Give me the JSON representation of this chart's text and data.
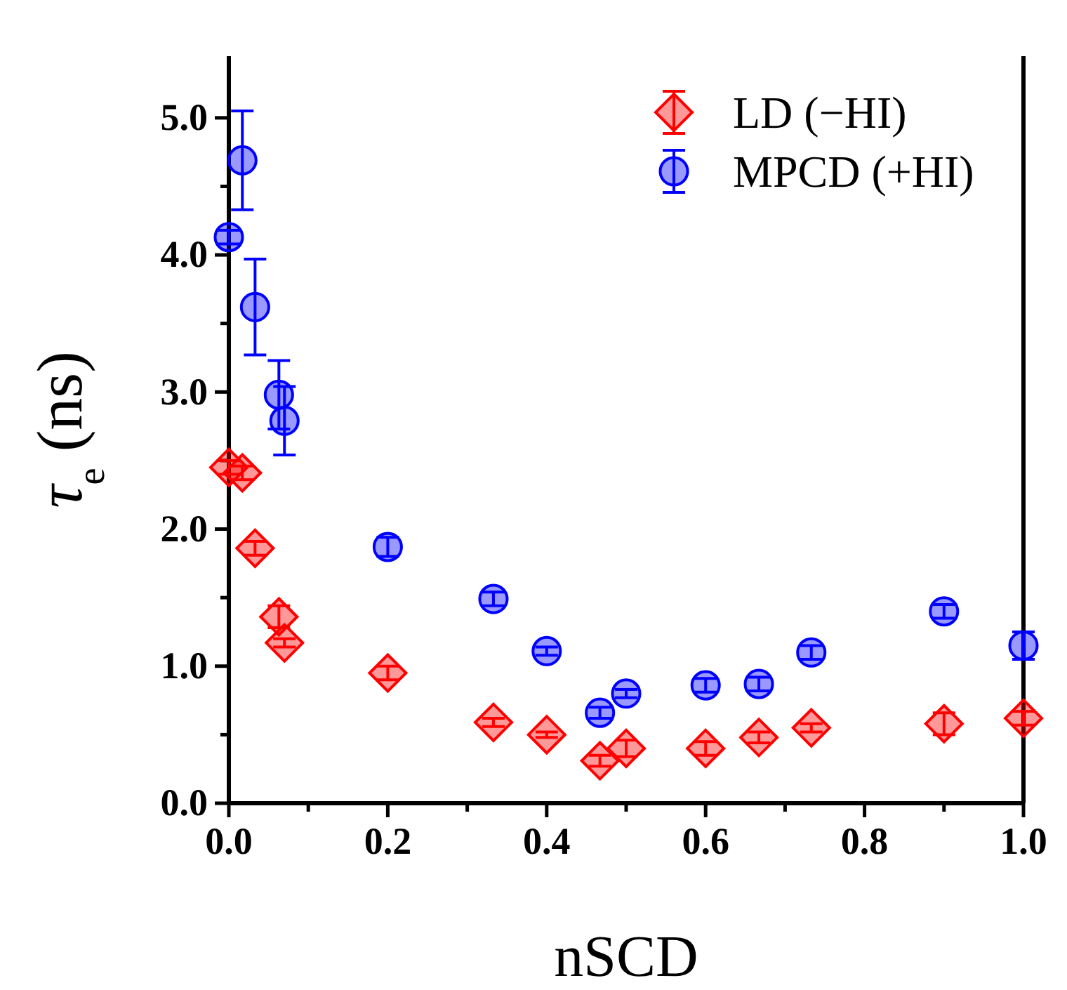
{
  "chart_data": {
    "type": "scatter",
    "xlabel": "nSCD",
    "ylabel": "τ$_{e}$ (ns)",
    "xlim": [
      0,
      1
    ],
    "ylim": [
      0,
      5.45
    ],
    "xticks": [
      {
        "value": 0,
        "label": "0.0"
      },
      {
        "value": 0.1,
        "label": null
      },
      {
        "value": 0.2,
        "label": "0.2"
      },
      {
        "value": 0.3,
        "label": null
      },
      {
        "value": 0.4,
        "label": "0.4"
      },
      {
        "value": 0.5,
        "label": null
      },
      {
        "value": 0.6,
        "label": "0.6"
      },
      {
        "value": 0.7,
        "label": null
      },
      {
        "value": 0.8,
        "label": "0.8"
      },
      {
        "value": 0.9,
        "label": null
      },
      {
        "value": 1,
        "label": "1.0"
      }
    ],
    "yticks": [
      {
        "value": 0,
        "label": "0.0"
      },
      {
        "value": 0.5,
        "label": null
      },
      {
        "value": 1,
        "label": "1.0"
      },
      {
        "value": 1.5,
        "label": null
      },
      {
        "value": 2,
        "label": "2.0"
      },
      {
        "value": 2.5,
        "label": null
      },
      {
        "value": 3,
        "label": "3.0"
      },
      {
        "value": 3.5,
        "label": null
      },
      {
        "value": 4,
        "label": "4.0"
      },
      {
        "value": 4.5,
        "label": null
      },
      {
        "value": 5,
        "label": "5.0"
      }
    ],
    "legend": "top right",
    "grid": false,
    "series": [
      {
        "name": "LD (−HI)",
        "color": "#ff0000",
        "marker": "diamond",
        "x": [
          0,
          0.017,
          0.033,
          0.063,
          0.07,
          0.2,
          0.333,
          0.4,
          0.467,
          0.5,
          0.6,
          0.667,
          0.733,
          0.9,
          1.0
        ],
        "values": [
          2.45,
          2.41,
          1.86,
          1.36,
          1.17,
          0.95,
          0.59,
          0.5,
          0.31,
          0.4,
          0.4,
          0.48,
          0.55,
          0.58,
          0.62
        ],
        "errors": [
          0.05,
          0.05,
          0.05,
          0.08,
          0.03,
          0.05,
          0.03,
          0.02,
          0.04,
          0.06,
          0.05,
          0.04,
          0.03,
          0.08,
          0.05
        ]
      },
      {
        "name": "MPCD (+HI)",
        "color": "#0000ff",
        "marker": "circle",
        "x": [
          0,
          0.017,
          0.033,
          0.063,
          0.07,
          0.2,
          0.333,
          0.4,
          0.467,
          0.5,
          0.6,
          0.667,
          0.733,
          0.9,
          1.0
        ],
        "values": [
          4.13,
          4.69,
          3.62,
          2.98,
          2.79,
          1.87,
          1.49,
          1.11,
          0.66,
          0.8,
          0.86,
          0.87,
          1.1,
          1.4,
          1.15
        ],
        "errors": [
          0.05,
          0.36,
          0.35,
          0.25,
          0.25,
          0.07,
          0.05,
          0.03,
          0.04,
          0.03,
          0.05,
          0.05,
          0.05,
          0.05,
          0.1
        ]
      }
    ]
  }
}
